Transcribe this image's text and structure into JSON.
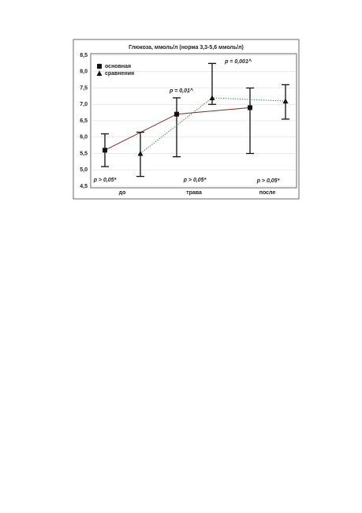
{
  "chart_data": {
    "type": "errorbar-line",
    "title": "Глюкоза, ммоль/л (норма 3,3-5,6 ммоль/л)",
    "categories": [
      "до",
      "трава",
      "после"
    ],
    "series": [
      {
        "name": "основная",
        "color": "#7a2a2a",
        "marker": "square",
        "line_style": "solid",
        "values": [
          5.6,
          6.7,
          6.9
        ],
        "lower": [
          5.1,
          5.4,
          5.5
        ],
        "upper": [
          6.1,
          7.2,
          7.5
        ]
      },
      {
        "name": "сравнения",
        "color": "#3f8a4a",
        "marker": "triangle",
        "line_style": "dotted",
        "values": [
          5.5,
          7.2,
          7.1
        ],
        "lower": [
          4.8,
          7.0,
          6.55
        ],
        "upper": [
          6.15,
          8.25,
          7.6
        ]
      }
    ],
    "ylim": [
      4.5,
      8.5
    ],
    "yticks": [
      {
        "value": 4.5,
        "label": "4,5"
      },
      {
        "value": 5.0,
        "label": "5,0"
      },
      {
        "value": 5.5,
        "label": "5,5"
      },
      {
        "value": 6.0,
        "label": "6,0"
      },
      {
        "value": 6.5,
        "label": "6,5"
      },
      {
        "value": 7.0,
        "label": "7,0"
      },
      {
        "value": 7.5,
        "label": "7,5"
      },
      {
        "value": 8.0,
        "label": "8,0"
      },
      {
        "value": 8.5,
        "label": "8,5"
      }
    ],
    "grid": true,
    "legend": "upper left",
    "annotations": [
      "p = 0,01^",
      "p = 0,001^",
      "p > 0,05*",
      "p > 0,05*",
      "p > 0,05*"
    ]
  }
}
